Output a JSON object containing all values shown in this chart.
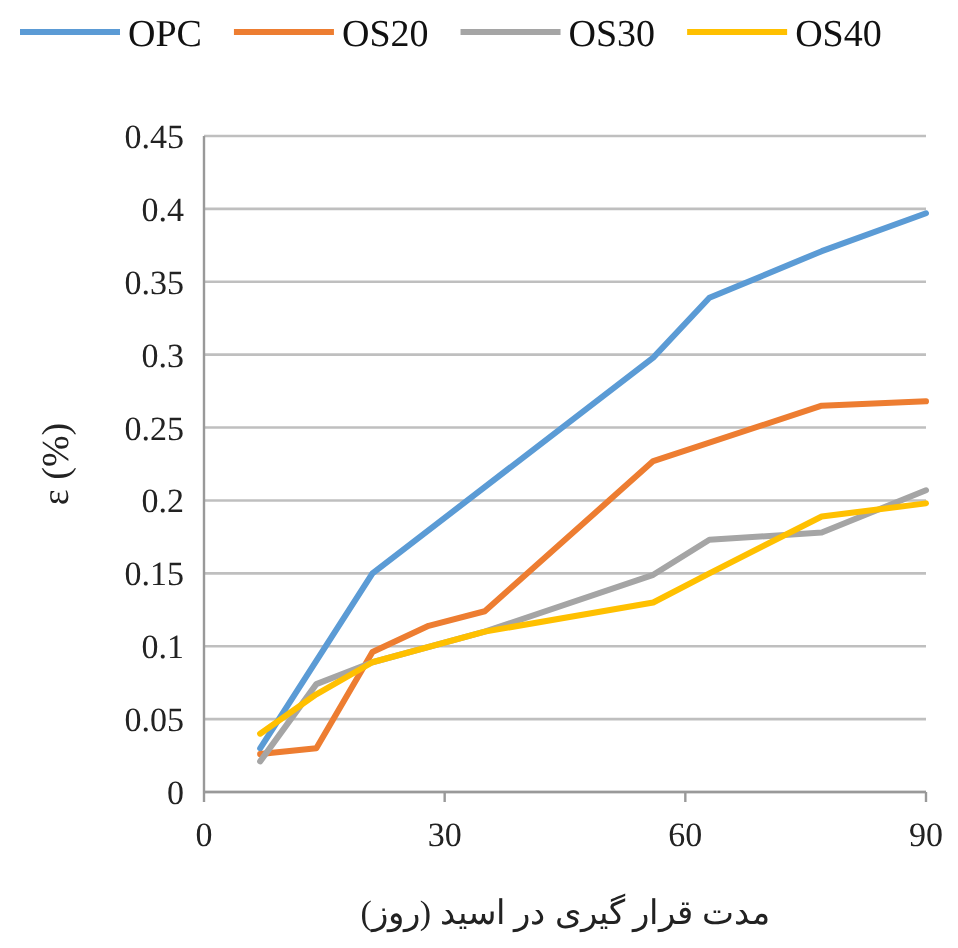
{
  "chart_data": {
    "type": "line",
    "xlabel": "مدت قرار گیری در اسید (روز)",
    "ylabel": "ε (%)",
    "xlim": [
      0,
      90
    ],
    "xticks": [
      0,
      30,
      60,
      90
    ],
    "ylim": [
      0,
      0.45
    ],
    "yticks": [
      0,
      0.05,
      0.1,
      0.15,
      0.2,
      0.25,
      0.3,
      0.35,
      0.4,
      0.45
    ],
    "grid": "y",
    "legend": "top",
    "marker": "none",
    "line_style": "solid",
    "series": [
      {
        "name": "OPC",
        "color": "#5b9bd5",
        "x": [
          7,
          21,
          56,
          63,
          77,
          90
        ],
        "values": [
          0.03,
          0.15,
          0.298,
          0.339,
          0.371,
          0.397
        ]
      },
      {
        "name": "OS20",
        "color": "#ed7d31",
        "x": [
          7,
          14,
          21,
          28,
          35,
          56,
          77,
          90
        ],
        "values": [
          0.026,
          0.03,
          0.096,
          0.114,
          0.124,
          0.227,
          0.265,
          0.268
        ]
      },
      {
        "name": "OS30",
        "color": "#a5a5a5",
        "x": [
          7,
          14,
          21,
          35,
          56,
          63,
          77,
          90
        ],
        "values": [
          0.021,
          0.074,
          0.089,
          0.11,
          0.149,
          0.173,
          0.178,
          0.207
        ]
      },
      {
        "name": "OS40",
        "color": "#ffc000",
        "x": [
          7,
          14,
          21,
          35,
          56,
          63,
          77,
          90
        ],
        "values": [
          0.04,
          0.067,
          0.089,
          0.11,
          0.13,
          0.15,
          0.189,
          0.198
        ]
      }
    ]
  }
}
